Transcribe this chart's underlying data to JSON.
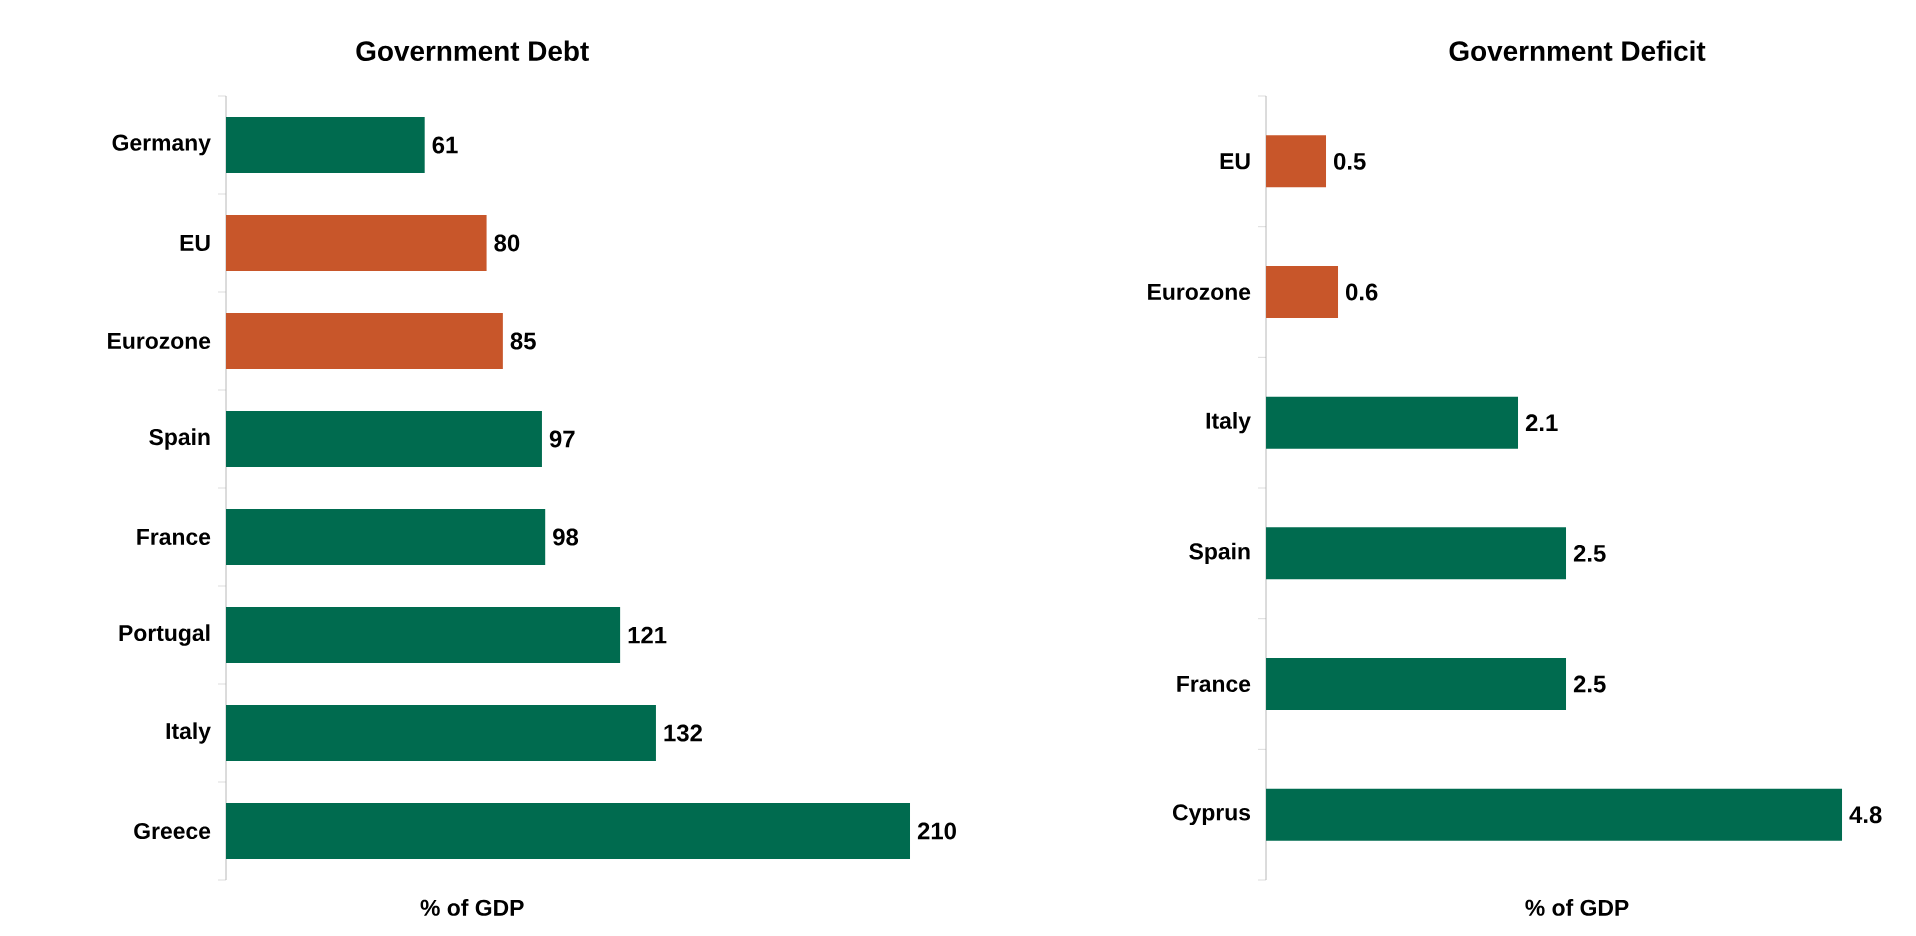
{
  "chart_data": [
    {
      "type": "bar",
      "orientation": "horizontal",
      "title": "Government Debt",
      "xlabel": "% of GDP",
      "categories": [
        "Germany",
        "EU",
        "Eurozone",
        "Spain",
        "France",
        "Portugal",
        "Italy",
        "Greece"
      ],
      "values": [
        61,
        80,
        85,
        97,
        98,
        121,
        132,
        210
      ],
      "colors": [
        "#006b4f",
        "#c8562a",
        "#c8562a",
        "#006b4f",
        "#006b4f",
        "#006b4f",
        "#006b4f",
        "#006b4f"
      ],
      "data_labels": true,
      "tick_labels": "y"
    },
    {
      "type": "bar",
      "orientation": "horizontal",
      "title": "Government Deficit",
      "xlabel": "% of GDP",
      "categories": [
        "EU",
        "Eurozone",
        "Italy",
        "Spain",
        "France",
        "Cyprus"
      ],
      "values": [
        0.5,
        0.6,
        2.1,
        2.5,
        2.5,
        4.8
      ],
      "colors": [
        "#c8562a",
        "#c8562a",
        "#006b4f",
        "#006b4f",
        "#006b4f",
        "#006b4f"
      ],
      "data_labels": true,
      "tick_labels": "y"
    }
  ]
}
